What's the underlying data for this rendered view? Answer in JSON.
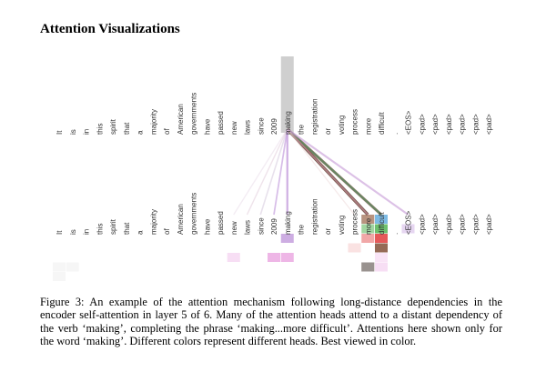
{
  "title": "Attention Visualizations",
  "tokens": [
    "It",
    "is",
    "in",
    "this",
    "spirit",
    "that",
    "a",
    "majority",
    "of",
    "American",
    "governments",
    "have",
    "passed",
    "new",
    "laws",
    "since",
    "2009",
    "making",
    "the",
    "registration",
    "or",
    "voting",
    "process",
    "more",
    "difficult",
    ".",
    "<EOS>",
    "<pad>",
    "<pad>",
    "<pad>",
    "<pad>",
    "<pad>",
    "<pad>"
  ],
  "query_token": "making",
  "attention": {
    "source": "making",
    "links": [
      {
        "target": "more",
        "color": "#6b4a3c",
        "weight": 0.95
      },
      {
        "target": "difficult",
        "color": "#8b6a5a",
        "weight": 0.85
      },
      {
        "target": "difficult",
        "color": "#4a8a5a",
        "weight": 0.5
      },
      {
        "target": "more",
        "color": "#d99ab0",
        "weight": 0.35
      },
      {
        "target": "<EOS>",
        "color": "#c9a0d8",
        "weight": 0.5
      },
      {
        "target": "making",
        "color": "#b88ad6",
        "weight": 0.55
      },
      {
        "target": "2009",
        "color": "#b88ad6",
        "weight": 0.35
      },
      {
        "target": "since",
        "color": "#d3c6dc",
        "weight": 0.3
      },
      {
        "target": "laws",
        "color": "#e0c8d8",
        "weight": 0.25
      },
      {
        "target": "new",
        "color": "#e6d6e6",
        "weight": 0.2
      },
      {
        "target": "process",
        "color": "#e9d2d2",
        "weight": 0.2
      }
    ],
    "heads": [
      {
        "color": "#6fb3e0"
      },
      {
        "color": "#e07a3c"
      },
      {
        "color": "#54b454"
      },
      {
        "color": "#e03c3c"
      },
      {
        "color": "#8a5a44"
      },
      {
        "color": "#b88ad6"
      },
      {
        "color": "#e07ad2"
      },
      {
        "color": "#888888"
      }
    ]
  },
  "caption": "Figure 3: An example of the attention mechanism following long-distance dependencies in the encoder self-attention in layer 5 of 6. Many of the attention heads attend to a distant dependency of the verb ‘making’, completing the phrase ‘making...more difficult’. Attentions here shown only for the word ‘making’. Different colors represent different heads. Best viewed in color."
}
